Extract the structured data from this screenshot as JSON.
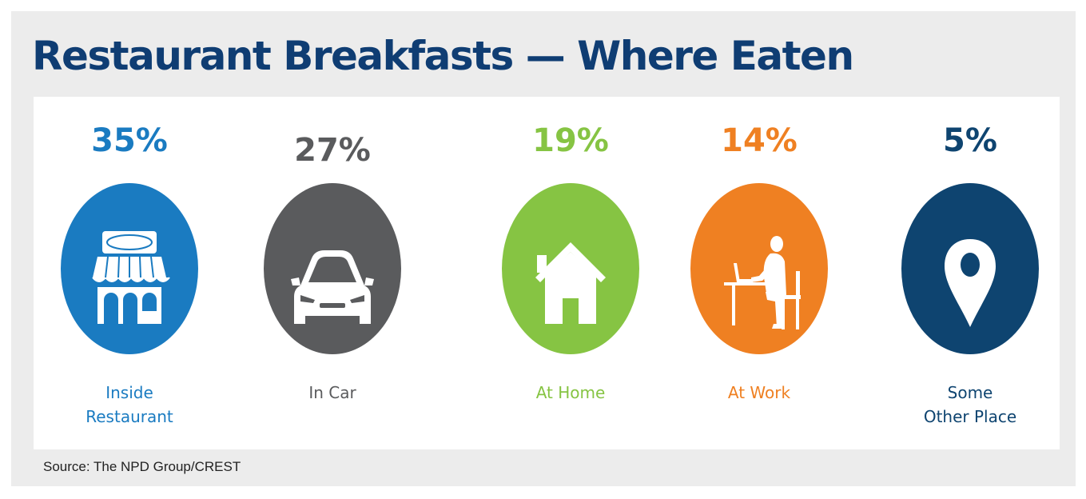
{
  "title": "Restaurant Breakfasts — Where Eaten",
  "source": "Source: The NPD Group/CREST",
  "chart_data": {
    "type": "pictograph",
    "unit": "%",
    "categories": [
      "Inside Restaurant",
      "In Car",
      "At Home",
      "At Work",
      "Some Other Place"
    ],
    "values": [
      35,
      27,
      19,
      14,
      5
    ],
    "items": [
      {
        "value": 35,
        "value_label": "35%",
        "label_lines": [
          "Inside",
          "Restaurant"
        ],
        "color": "#1a7bc1",
        "icon": "storefront-icon"
      },
      {
        "value": 27,
        "value_label": "27%",
        "label_lines": [
          "In Car"
        ],
        "color": "#5a5b5d",
        "icon": "car-icon"
      },
      {
        "value": 19,
        "value_label": "19%",
        "label_lines": [
          "At Home"
        ],
        "color": "#86c443",
        "icon": "house-icon"
      },
      {
        "value": 14,
        "value_label": "14%",
        "label_lines": [
          "At Work"
        ],
        "color": "#ef8022",
        "icon": "person-at-desk-icon"
      },
      {
        "value": 5,
        "value_label": "5%",
        "label_lines": [
          "Some",
          "Other Place"
        ],
        "color": "#0e4470",
        "icon": "location-pin-icon"
      }
    ]
  }
}
